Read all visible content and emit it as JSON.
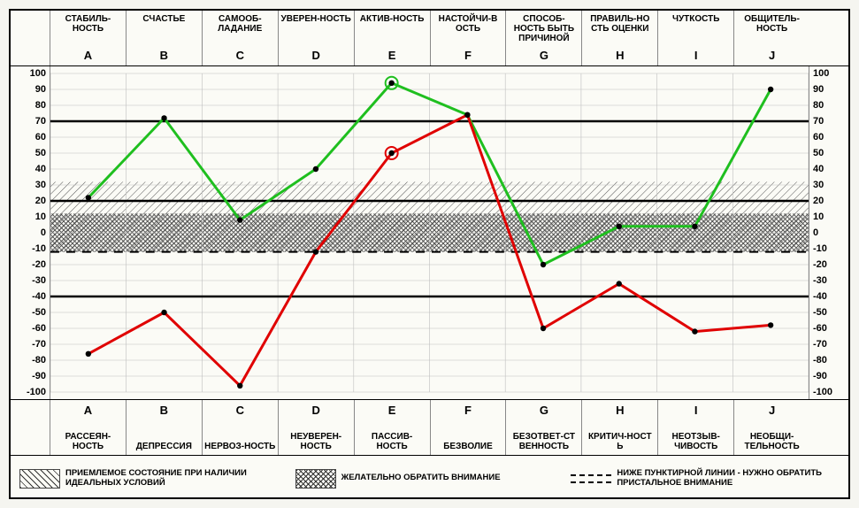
{
  "chart": {
    "type": "line",
    "y_min": -100,
    "y_max": 100,
    "y_step": 10,
    "columns": [
      {
        "letter": "A",
        "top": "СТАБИЛЬ-НОСТЬ",
        "bottom": "РАССЕЯН-НОСТЬ"
      },
      {
        "letter": "B",
        "top": "СЧАСТЬЕ",
        "bottom": "ДЕПРЕССИЯ"
      },
      {
        "letter": "C",
        "top": "САМООБ-ЛАДАНИЕ",
        "bottom": "НЕРВОЗ-НОСТЬ"
      },
      {
        "letter": "D",
        "top": "УВЕРЕН-НОСТЬ",
        "bottom": "НЕУВЕРЕН-НОСТЬ"
      },
      {
        "letter": "E",
        "top": "АКТИВ-НОСТЬ",
        "bottom": "ПАССИВ-НОСТЬ"
      },
      {
        "letter": "F",
        "top": "НАСТОЙЧИ-В ОСТЬ",
        "bottom": "БЕЗВОЛИЕ"
      },
      {
        "letter": "G",
        "top": "СПОСОБ-НОСТЬ БЫТЬ ПРИЧИНОЙ",
        "bottom": "БЕЗОТВЕТ-СТ ВЕННОСТЬ"
      },
      {
        "letter": "H",
        "top": "ПРАВИЛЬ-НО СТЬ ОЦЕНКИ",
        "bottom": "КРИТИЧ-НОСТ Ь"
      },
      {
        "letter": "I",
        "top": "ЧУТКОСТЬ",
        "bottom": "НЕОТЗЫВ-ЧИВОСТЬ"
      },
      {
        "letter": "J",
        "top": "ОБЩИТЕЛЬ-НОСТЬ",
        "bottom": "НЕОБЩИ-ТЕЛЬНОСТЬ"
      }
    ],
    "series": [
      {
        "name": "green",
        "color": "#1fbf1f",
        "width": 3,
        "values": [
          22,
          72,
          8,
          40,
          94,
          74,
          -20,
          4,
          4,
          90
        ],
        "emph_index": 4
      },
      {
        "name": "red",
        "color": "#e00000",
        "width": 3,
        "values": [
          -76,
          -50,
          -96,
          -12,
          50,
          74,
          -60,
          -32,
          -62,
          -58
        ],
        "emph_index": 4
      }
    ],
    "ref_lines": [
      70,
      20,
      -40
    ],
    "dash_line": -12,
    "hatch_band_light": {
      "from": -12,
      "to": 32
    },
    "hatch_band_dark": {
      "from": -12,
      "to": 12
    },
    "background": "#fbfbf6",
    "grid_color": "#bfbfbf",
    "dot_radius": 3.2,
    "emph_radius": 7
  },
  "legend": [
    {
      "swatch": "hatch1",
      "text": "ПРИЕМЛЕМОЕ СОСТОЯНИЕ ПРИ НАЛИЧИИ ИДЕАЛЬНЫХ УСЛОВИЙ"
    },
    {
      "swatch": "hatch2",
      "text": "ЖЕЛАТЕЛЬНО ОБРАТИТЬ ВНИМАНИЕ"
    },
    {
      "swatch": "dash",
      "text": "НИЖЕ ПУНКТИРНОЙ ЛИНИИ - НУЖНО ОБРАТИТЬ ПРИСТАЛЬНОЕ ВНИМАНИЕ"
    }
  ]
}
